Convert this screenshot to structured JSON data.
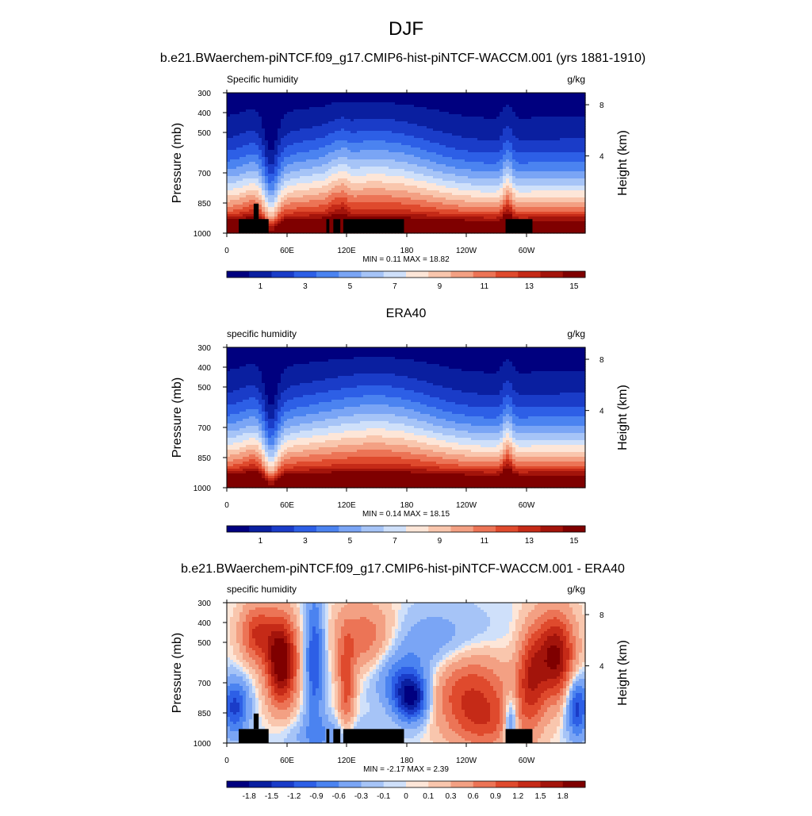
{
  "figure": {
    "title": "DJF",
    "subtitle": "b.e21.BWaerchem-piNTCF.f09_g17.CMIP6-hist-piNTCF-WACCM.001 (yrs 1881-1910)"
  },
  "chart_data": [
    {
      "type": "heatmap",
      "title": "",
      "left_label": "Specific humidity",
      "right_label": "g/kg",
      "ylabel": "Pressure (mb)",
      "ylabel_right": "Height (km)",
      "x_ticks": [
        "0",
        "60E",
        "120E",
        "180",
        "120W",
        "60W"
      ],
      "y_ticks": [
        "300",
        "400",
        "500",
        "700",
        "850",
        "1000"
      ],
      "right_ticks": [
        "8",
        "4"
      ],
      "stats": "MIN =   0.11  MAX =  18.82",
      "colorbar_labels": [
        "1",
        "3",
        "5",
        "7",
        "9",
        "11",
        "13",
        "15"
      ],
      "colorbar_colors": [
        "#00007f",
        "#0a1fa0",
        "#1a3cc8",
        "#2d5fe6",
        "#4b83f0",
        "#7aa5f5",
        "#a6c4f7",
        "#cfe0fa",
        "#fde6d8",
        "#f9c6ad",
        "#f3a083",
        "#ec7456",
        "#df4a2d",
        "#c52a17",
        "#a3140b",
        "#7f0000"
      ],
      "field": "model",
      "terrain": true,
      "field_min": 0.11,
      "field_max": 18.82
    },
    {
      "type": "heatmap",
      "title": "ERA40",
      "left_label": "specific humidity",
      "right_label": "g/kg",
      "ylabel": "Pressure (mb)",
      "ylabel_right": "Height (km)",
      "x_ticks": [
        "0",
        "60E",
        "120E",
        "180",
        "120W",
        "60W"
      ],
      "y_ticks": [
        "300",
        "400",
        "500",
        "700",
        "850",
        "1000"
      ],
      "right_ticks": [
        "8",
        "4"
      ],
      "stats": "MIN =   0.14  MAX =  18.15",
      "colorbar_labels": [
        "1",
        "3",
        "5",
        "7",
        "9",
        "11",
        "13",
        "15"
      ],
      "colorbar_colors": [
        "#00007f",
        "#0a1fa0",
        "#1a3cc8",
        "#2d5fe6",
        "#4b83f0",
        "#7aa5f5",
        "#a6c4f7",
        "#cfe0fa",
        "#fde6d8",
        "#f9c6ad",
        "#f3a083",
        "#ec7456",
        "#df4a2d",
        "#c52a17",
        "#a3140b",
        "#7f0000"
      ],
      "field": "obs",
      "terrain": false,
      "field_min": 0.14,
      "field_max": 18.15
    },
    {
      "type": "heatmap",
      "title": "b.e21.BWaerchem-piNTCF.f09_g17.CMIP6-hist-piNTCF-WACCM.001 - ERA40",
      "left_label": "specific humidity",
      "right_label": "g/kg",
      "ylabel": "Pressure (mb)",
      "ylabel_right": "Height (km)",
      "x_ticks": [
        "0",
        "60E",
        "120E",
        "180",
        "120W",
        "60W"
      ],
      "y_ticks": [
        "300",
        "400",
        "500",
        "700",
        "850",
        "1000"
      ],
      "right_ticks": [
        "8",
        "4"
      ],
      "stats": "MIN =  -2.17  MAX =   2.39",
      "colorbar_labels": [
        "-1.8",
        "-1.5",
        "-1.2",
        "-0.9",
        "-0.6",
        "-0.3",
        "-0.1",
        "0",
        "0.1",
        "0.3",
        "0.6",
        "0.9",
        "1.2",
        "1.5",
        "1.8"
      ],
      "colorbar_colors": [
        "#00007f",
        "#0a1fa0",
        "#1a3cc8",
        "#2d5fe6",
        "#4b83f0",
        "#7aa5f5",
        "#a6c4f7",
        "#cfe0fa",
        "#fde6d8",
        "#f9c6ad",
        "#f3a083",
        "#ec7456",
        "#df4a2d",
        "#c52a17",
        "#a3140b",
        "#7f0000"
      ],
      "field": "diff",
      "terrain": true,
      "field_min": -2.17,
      "field_max": 2.39
    }
  ]
}
